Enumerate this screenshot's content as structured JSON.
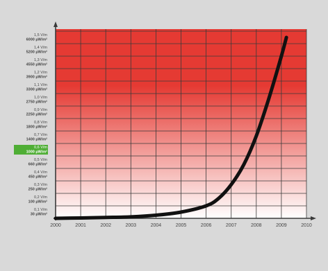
{
  "chart_data": {
    "type": "line",
    "title": "",
    "xlabel": "",
    "ylabel": "",
    "x_ticks": [
      "2000",
      "2001",
      "2002",
      "2003",
      "2004",
      "2005",
      "2006",
      "2007",
      "2008",
      "2009",
      "2010"
    ],
    "xlim": [
      2000,
      2010
    ],
    "ylim": [
      0,
      1.5
    ],
    "y_ticks": [
      {
        "value": 1.5,
        "top": "1,5 V/m",
        "bottom": "6000 µW/m²"
      },
      {
        "value": 1.4,
        "top": "1,4 V/m",
        "bottom": "5200 µW/m²"
      },
      {
        "value": 1.3,
        "top": "1,3 V/m",
        "bottom": "4550 µW/m²"
      },
      {
        "value": 1.2,
        "top": "1,2 V/m",
        "bottom": "3900 µW/m²"
      },
      {
        "value": 1.1,
        "top": "1,1 V/m",
        "bottom": "3300 µW/m²"
      },
      {
        "value": 1.0,
        "top": "1,0 V/m",
        "bottom": "2750 µW/m²"
      },
      {
        "value": 0.9,
        "top": "0,9 V/m",
        "bottom": "2250 µW/m²"
      },
      {
        "value": 0.8,
        "top": "0,8 V/m",
        "bottom": "1800 µW/m²"
      },
      {
        "value": 0.7,
        "top": "0,7 V/m",
        "bottom": "1400 µW/m²"
      },
      {
        "value": 0.6,
        "top": "0,6 V/m",
        "bottom": "1000 µW/m²",
        "highlight": true
      },
      {
        "value": 0.5,
        "top": "0,5 V/m",
        "bottom": "660 µW/m²"
      },
      {
        "value": 0.4,
        "top": "0,4 V/m",
        "bottom": "450 µW/m²"
      },
      {
        "value": 0.3,
        "top": "0,3 V/m",
        "bottom": "250 µW/m²"
      },
      {
        "value": 0.2,
        "top": "0,2 V/m",
        "bottom": "100 µW/m²"
      },
      {
        "value": 0.1,
        "top": "0,1 V/m",
        "bottom": "30 µW/m²"
      }
    ],
    "series": [
      {
        "x": [
          2000,
          2001,
          2002,
          2003,
          2004,
          2005,
          2006,
          2006.5,
          2007,
          2007.5,
          2008,
          2008.5,
          2009,
          2009.2
        ],
        "y": [
          0.0,
          0.003,
          0.007,
          0.012,
          0.025,
          0.05,
          0.1,
          0.16,
          0.27,
          0.43,
          0.66,
          0.96,
          1.3,
          1.45
        ]
      }
    ],
    "grid": true,
    "legend": "none"
  },
  "colors": {
    "page_background": "#d9d9d9",
    "plot_top": "#e53a33",
    "plot_bottom": "#ffffff",
    "grid": "#3a3a3a",
    "line": "#111111",
    "tick_text": "#444444",
    "highlight_label_bg": "#4fae35",
    "highlight_label_text": "#ffffff"
  }
}
